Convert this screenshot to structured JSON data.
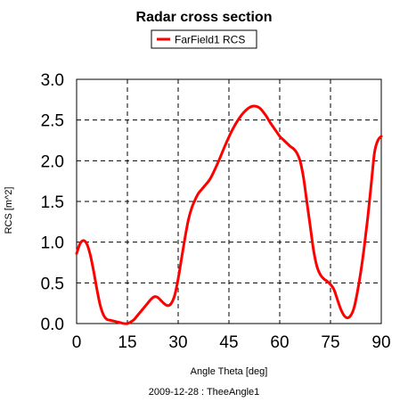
{
  "chart_data": {
    "type": "line",
    "title": "Radar cross section",
    "xlabel": "Angle Theta [deg]",
    "ylabel": "RCS [m^2]",
    "footer": "2009-12-28 : TheeAngle1",
    "xlim": [
      0,
      90
    ],
    "ylim": [
      0,
      3
    ],
    "xticks": [
      "0",
      "15",
      "30",
      "45",
      "60",
      "75",
      "90"
    ],
    "yticks": [
      "0.0",
      "0.5",
      "1.0",
      "1.5",
      "2.0",
      "2.5",
      "3.0"
    ],
    "grid": true,
    "legend_position": "top-center",
    "series": [
      {
        "name": "FarField1 RCS",
        "color": "#ff0000",
        "x": [
          0,
          1,
          2,
          3,
          4,
          5,
          6,
          7,
          8,
          9,
          10,
          11,
          12,
          13,
          14,
          15,
          16,
          17,
          18,
          19,
          20,
          21,
          22,
          23,
          24,
          25,
          26,
          27,
          28,
          29,
          30,
          31,
          32,
          33,
          34,
          35,
          36,
          37,
          38,
          39,
          40,
          42,
          44,
          46,
          48,
          50,
          52,
          54,
          56,
          57,
          58,
          59,
          60,
          61,
          62,
          63,
          64,
          65,
          66,
          67,
          68,
          69,
          70,
          71,
          72,
          73,
          74,
          75,
          76,
          77,
          78,
          79,
          80,
          81,
          82,
          83,
          84,
          85,
          86,
          87,
          88,
          89,
          90
        ],
        "values": [
          0.86,
          0.98,
          1.02,
          0.98,
          0.85,
          0.65,
          0.42,
          0.22,
          0.1,
          0.05,
          0.04,
          0.03,
          0.02,
          0.01,
          0.0,
          0.0,
          0.02,
          0.05,
          0.1,
          0.15,
          0.2,
          0.25,
          0.3,
          0.33,
          0.32,
          0.28,
          0.24,
          0.22,
          0.25,
          0.35,
          0.55,
          0.8,
          1.05,
          1.27,
          1.42,
          1.52,
          1.6,
          1.65,
          1.7,
          1.75,
          1.82,
          2.0,
          2.2,
          2.38,
          2.52,
          2.62,
          2.67,
          2.65,
          2.55,
          2.48,
          2.42,
          2.36,
          2.3,
          2.26,
          2.22,
          2.18,
          2.15,
          2.1,
          2.0,
          1.8,
          1.5,
          1.2,
          0.9,
          0.7,
          0.6,
          0.55,
          0.52,
          0.48,
          0.42,
          0.3,
          0.18,
          0.1,
          0.07,
          0.1,
          0.2,
          0.4,
          0.65,
          0.95,
          1.3,
          1.7,
          2.1,
          2.25,
          2.3
        ]
      }
    ]
  }
}
